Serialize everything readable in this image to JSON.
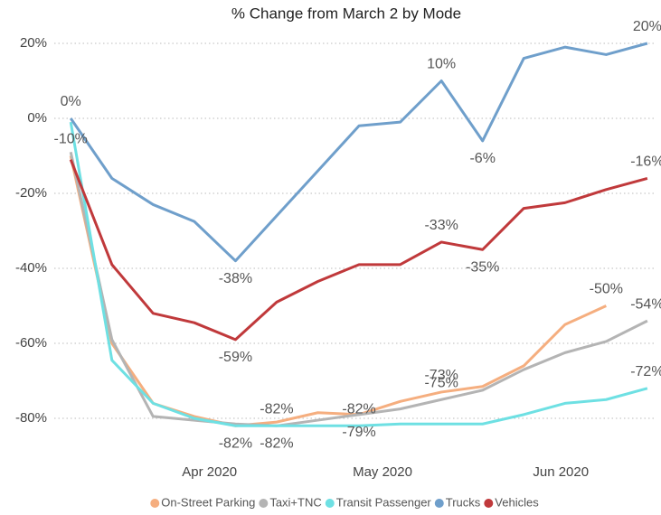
{
  "chart_data": {
    "type": "line",
    "title": "% Change from March 2 by Mode",
    "x": [
      0,
      1,
      2,
      3,
      4,
      5,
      6,
      7,
      8,
      9,
      10,
      11,
      12,
      13,
      14
    ],
    "xlim": [
      -0.4,
      14.2
    ],
    "xticks": [
      {
        "value": 3.37,
        "label": "Apr 2020"
      },
      {
        "value": 7.57,
        "label": "May 2020"
      },
      {
        "value": 11.9,
        "label": "Jun 2020"
      }
    ],
    "ylim": [
      -90,
      25
    ],
    "yticks": [
      {
        "value": 20,
        "label": "20%"
      },
      {
        "value": 0,
        "label": "0%"
      },
      {
        "value": -20,
        "label": "-20%"
      },
      {
        "value": -40,
        "label": "-40%"
      },
      {
        "value": -60,
        "label": "-60%"
      },
      {
        "value": -80,
        "label": "-80%"
      }
    ],
    "grid": true,
    "legend": "bottom",
    "series": [
      {
        "name": "On-Street Parking",
        "color": "#f5ae7f",
        "values": [
          -10,
          -60,
          -76,
          -79.5,
          -82,
          -81,
          -78.5,
          -79,
          -75.5,
          -73,
          -71.5,
          -66,
          -55,
          -50,
          null
        ],
        "value_labels": [
          "-10%",
          null,
          null,
          null,
          "-82%",
          null,
          null,
          "-79%",
          null,
          "-73%",
          null,
          null,
          null,
          "-50%",
          null
        ]
      },
      {
        "name": "Taxi+TNC",
        "color": "#b4b4b4",
        "values": [
          -9,
          -59,
          -79.5,
          -80.5,
          -81.5,
          -82,
          -80.5,
          -79,
          -77.5,
          -75,
          -72.5,
          -67,
          -62.5,
          -59.5,
          -54
        ],
        "value_labels": [
          null,
          null,
          null,
          null,
          null,
          "-82%",
          null,
          null,
          null,
          "-75%",
          null,
          null,
          null,
          null,
          "-54%"
        ]
      },
      {
        "name": "Transit Passenger",
        "color": "#6ee0e3",
        "values": [
          -1,
          -64.5,
          -76,
          -80,
          -82,
          -82,
          -82,
          -82,
          -81.5,
          -81.5,
          -81.5,
          -79,
          -76,
          -75,
          -72
        ],
        "value_labels": [
          null,
          null,
          null,
          null,
          null,
          "-82%",
          null,
          "-82%",
          null,
          null,
          null,
          null,
          null,
          null,
          "-72%"
        ]
      },
      {
        "name": "Trucks",
        "color": "#6f9fcb",
        "values": [
          0,
          -16,
          -23,
          -27.5,
          -38,
          -26,
          -14,
          -2,
          -1,
          10,
          -6,
          16,
          19,
          17,
          20
        ],
        "value_labels": [
          "0%",
          null,
          null,
          null,
          "-38%",
          null,
          null,
          null,
          null,
          "10%",
          "-6%",
          null,
          null,
          null,
          "20%"
        ]
      },
      {
        "name": "Vehicles",
        "color": "#c0393b",
        "values": [
          -11,
          -39,
          -52,
          -54.5,
          -59,
          -49,
          -43.5,
          -39,
          -39,
          -33,
          -35,
          -24,
          -22.5,
          -19,
          -16
        ],
        "value_labels": [
          null,
          null,
          null,
          null,
          "-59%",
          null,
          null,
          null,
          null,
          "-33%",
          "-35%",
          null,
          null,
          null,
          "-16%"
        ]
      }
    ]
  }
}
